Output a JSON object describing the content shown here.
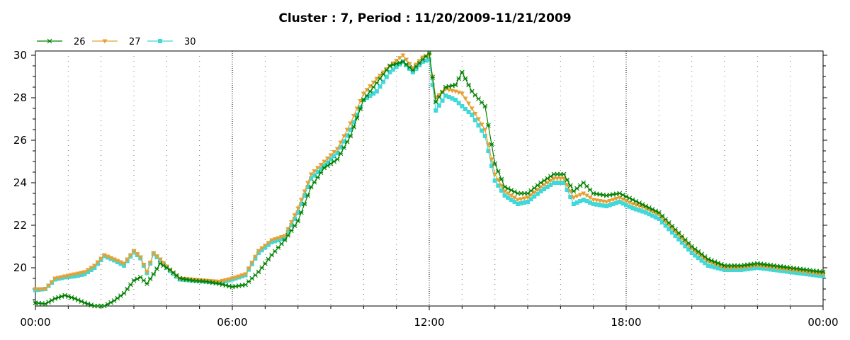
{
  "chart_data": {
    "type": "line",
    "title": "Cluster : 7, Period : 11/20/2009-11/21/2009",
    "xlabel": "",
    "ylabel": "",
    "x_unit": "hours since 00:00",
    "xlim": [
      0,
      24
    ],
    "ylim": [
      18.2,
      30.2
    ],
    "x_ticks": [
      {
        "value": 0,
        "label": "00:00"
      },
      {
        "value": 6,
        "label": "06:00"
      },
      {
        "value": 12,
        "label": "12:00"
      },
      {
        "value": 18,
        "label": "18:00"
      },
      {
        "value": 24,
        "label": "00:00"
      }
    ],
    "y_ticks": [
      {
        "value": 20,
        "label": "20"
      },
      {
        "value": 22,
        "label": "22"
      },
      {
        "value": 24,
        "label": "24"
      },
      {
        "value": 26,
        "label": "26"
      },
      {
        "value": 28,
        "label": "28"
      },
      {
        "value": 30,
        "label": "30"
      }
    ],
    "grid": "dotted vertical lines every hour; denser dots at 6-hour marks",
    "legend_position": "top-left",
    "series": [
      {
        "name": "26",
        "color": "#008000",
        "marker": "star",
        "points": [
          [
            0.0,
            18.35
          ],
          [
            0.3,
            18.3
          ],
          [
            0.6,
            18.55
          ],
          [
            0.9,
            18.7
          ],
          [
            1.2,
            18.55
          ],
          [
            1.5,
            18.35
          ],
          [
            1.8,
            18.2
          ],
          [
            2.1,
            18.2
          ],
          [
            2.4,
            18.45
          ],
          [
            2.7,
            18.8
          ],
          [
            3.0,
            19.4
          ],
          [
            3.2,
            19.55
          ],
          [
            3.4,
            19.25
          ],
          [
            3.6,
            19.7
          ],
          [
            3.8,
            20.2
          ],
          [
            4.1,
            19.9
          ],
          [
            4.4,
            19.5
          ],
          [
            4.8,
            19.4
          ],
          [
            5.2,
            19.35
          ],
          [
            5.6,
            19.25
          ],
          [
            6.0,
            19.1
          ],
          [
            6.4,
            19.2
          ],
          [
            6.8,
            19.8
          ],
          [
            7.2,
            20.6
          ],
          [
            7.6,
            21.3
          ],
          [
            8.0,
            22.2
          ],
          [
            8.4,
            23.8
          ],
          [
            8.8,
            24.7
          ],
          [
            9.2,
            25.1
          ],
          [
            9.6,
            26.2
          ],
          [
            10.0,
            27.9
          ],
          [
            10.4,
            28.7
          ],
          [
            10.8,
            29.5
          ],
          [
            11.2,
            29.7
          ],
          [
            11.5,
            29.3
          ],
          [
            11.8,
            29.8
          ],
          [
            12.0,
            30.1
          ],
          [
            12.2,
            27.8
          ],
          [
            12.5,
            28.5
          ],
          [
            12.8,
            28.6
          ],
          [
            13.0,
            29.2
          ],
          [
            13.3,
            28.3
          ],
          [
            13.7,
            27.6
          ],
          [
            14.0,
            24.9
          ],
          [
            14.3,
            23.8
          ],
          [
            14.7,
            23.5
          ],
          [
            15.0,
            23.5
          ],
          [
            15.4,
            24.0
          ],
          [
            15.8,
            24.4
          ],
          [
            16.1,
            24.4
          ],
          [
            16.4,
            23.6
          ],
          [
            16.7,
            24.0
          ],
          [
            17.0,
            23.5
          ],
          [
            17.4,
            23.4
          ],
          [
            17.8,
            23.5
          ],
          [
            18.2,
            23.2
          ],
          [
            18.6,
            22.9
          ],
          [
            19.0,
            22.6
          ],
          [
            19.5,
            21.8
          ],
          [
            20.0,
            21.0
          ],
          [
            20.5,
            20.4
          ],
          [
            21.0,
            20.1
          ],
          [
            21.5,
            20.1
          ],
          [
            22.0,
            20.2
          ],
          [
            22.5,
            20.1
          ],
          [
            23.0,
            20.0
          ],
          [
            23.5,
            19.9
          ],
          [
            24.0,
            19.8
          ]
        ]
      },
      {
        "name": "27",
        "color": "#E8A032",
        "marker": "triangle-down",
        "points": [
          [
            0.0,
            19.0
          ],
          [
            0.3,
            19.0
          ],
          [
            0.6,
            19.5
          ],
          [
            0.9,
            19.6
          ],
          [
            1.2,
            19.7
          ],
          [
            1.5,
            19.8
          ],
          [
            1.8,
            20.1
          ],
          [
            2.1,
            20.6
          ],
          [
            2.4,
            20.4
          ],
          [
            2.7,
            20.2
          ],
          [
            3.0,
            20.8
          ],
          [
            3.2,
            20.5
          ],
          [
            3.4,
            19.8
          ],
          [
            3.6,
            20.7
          ],
          [
            3.8,
            20.4
          ],
          [
            4.1,
            19.9
          ],
          [
            4.4,
            19.5
          ],
          [
            4.8,
            19.45
          ],
          [
            5.2,
            19.4
          ],
          [
            5.6,
            19.35
          ],
          [
            6.0,
            19.5
          ],
          [
            6.4,
            19.7
          ],
          [
            6.8,
            20.8
          ],
          [
            7.2,
            21.3
          ],
          [
            7.6,
            21.5
          ],
          [
            8.0,
            22.8
          ],
          [
            8.4,
            24.4
          ],
          [
            8.8,
            25.0
          ],
          [
            9.2,
            25.6
          ],
          [
            9.6,
            26.8
          ],
          [
            10.0,
            28.2
          ],
          [
            10.4,
            28.9
          ],
          [
            10.8,
            29.5
          ],
          [
            11.2,
            30.0
          ],
          [
            11.5,
            29.4
          ],
          [
            11.8,
            29.9
          ],
          [
            12.0,
            30.0
          ],
          [
            12.2,
            28.0
          ],
          [
            12.5,
            28.4
          ],
          [
            12.8,
            28.3
          ],
          [
            13.0,
            28.2
          ],
          [
            13.3,
            27.5
          ],
          [
            13.7,
            26.5
          ],
          [
            14.0,
            24.4
          ],
          [
            14.3,
            23.6
          ],
          [
            14.7,
            23.2
          ],
          [
            15.0,
            23.3
          ],
          [
            15.4,
            23.8
          ],
          [
            15.8,
            24.2
          ],
          [
            16.1,
            24.2
          ],
          [
            16.4,
            23.3
          ],
          [
            16.7,
            23.5
          ],
          [
            17.0,
            23.2
          ],
          [
            17.4,
            23.1
          ],
          [
            17.8,
            23.3
          ],
          [
            18.2,
            23.0
          ],
          [
            18.6,
            22.8
          ],
          [
            19.0,
            22.5
          ],
          [
            19.5,
            21.7
          ],
          [
            20.0,
            20.9
          ],
          [
            20.5,
            20.3
          ],
          [
            21.0,
            20.0
          ],
          [
            21.5,
            20.0
          ],
          [
            22.0,
            20.1
          ],
          [
            22.5,
            20.0
          ],
          [
            23.0,
            19.9
          ],
          [
            23.5,
            19.8
          ],
          [
            24.0,
            19.7
          ]
        ]
      },
      {
        "name": "30",
        "color": "#40D8D8",
        "marker": "square",
        "points": [
          [
            0.0,
            18.95
          ],
          [
            0.3,
            19.0
          ],
          [
            0.6,
            19.45
          ],
          [
            0.9,
            19.55
          ],
          [
            1.2,
            19.6
          ],
          [
            1.5,
            19.7
          ],
          [
            1.8,
            20.0
          ],
          [
            2.1,
            20.55
          ],
          [
            2.4,
            20.35
          ],
          [
            2.7,
            20.1
          ],
          [
            3.0,
            20.75
          ],
          [
            3.2,
            20.45
          ],
          [
            3.4,
            19.75
          ],
          [
            3.6,
            20.65
          ],
          [
            3.8,
            20.35
          ],
          [
            4.1,
            19.85
          ],
          [
            4.4,
            19.45
          ],
          [
            4.8,
            19.4
          ],
          [
            5.2,
            19.35
          ],
          [
            5.6,
            19.3
          ],
          [
            6.0,
            19.45
          ],
          [
            6.4,
            19.65
          ],
          [
            6.8,
            20.7
          ],
          [
            7.2,
            21.2
          ],
          [
            7.6,
            21.4
          ],
          [
            8.0,
            22.6
          ],
          [
            8.4,
            24.2
          ],
          [
            8.8,
            24.8
          ],
          [
            9.2,
            25.4
          ],
          [
            9.6,
            26.5
          ],
          [
            10.0,
            27.9
          ],
          [
            10.4,
            28.3
          ],
          [
            10.8,
            29.2
          ],
          [
            11.2,
            29.7
          ],
          [
            11.5,
            29.2
          ],
          [
            11.8,
            29.7
          ],
          [
            12.0,
            29.8
          ],
          [
            12.2,
            27.4
          ],
          [
            12.5,
            28.1
          ],
          [
            12.8,
            27.9
          ],
          [
            13.0,
            27.6
          ],
          [
            13.3,
            27.2
          ],
          [
            13.7,
            26.2
          ],
          [
            14.0,
            24.1
          ],
          [
            14.3,
            23.4
          ],
          [
            14.7,
            23.0
          ],
          [
            15.0,
            23.1
          ],
          [
            15.4,
            23.6
          ],
          [
            15.8,
            24.0
          ],
          [
            16.1,
            24.0
          ],
          [
            16.4,
            23.0
          ],
          [
            16.7,
            23.2
          ],
          [
            17.0,
            23.0
          ],
          [
            17.4,
            22.9
          ],
          [
            17.8,
            23.1
          ],
          [
            18.2,
            22.8
          ],
          [
            18.6,
            22.6
          ],
          [
            19.0,
            22.3
          ],
          [
            19.5,
            21.5
          ],
          [
            20.0,
            20.7
          ],
          [
            20.5,
            20.1
          ],
          [
            21.0,
            19.9
          ],
          [
            21.5,
            19.9
          ],
          [
            22.0,
            20.0
          ],
          [
            22.5,
            19.9
          ],
          [
            23.0,
            19.8
          ],
          [
            23.5,
            19.7
          ],
          [
            24.0,
            19.6
          ]
        ]
      }
    ]
  }
}
